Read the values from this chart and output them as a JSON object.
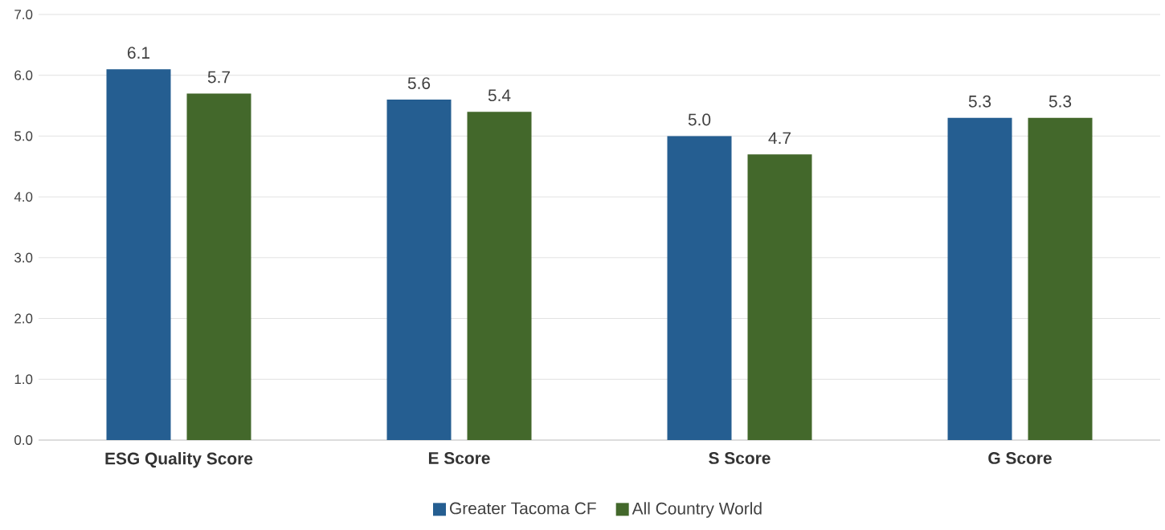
{
  "chart_data": {
    "type": "bar",
    "categories": [
      "ESG Quality Score",
      "E Score",
      "S Score",
      "G Score"
    ],
    "series": [
      {
        "name": "Greater Tacoma CF",
        "color": "#255e91",
        "values": [
          6.1,
          5.6,
          5.0,
          5.3
        ],
        "value_labels": [
          "6.1",
          "5.6",
          "5.0",
          "5.3"
        ]
      },
      {
        "name": "All Country World",
        "color": "#43682b",
        "values": [
          5.7,
          5.4,
          4.7,
          5.3
        ],
        "value_labels": [
          "5.7",
          "5.4",
          "4.7",
          "5.3"
        ]
      }
    ],
    "ylim": [
      0,
      7
    ],
    "yticks": [
      {
        "value": 0,
        "label": "0.0"
      },
      {
        "value": 1,
        "label": "1.0"
      },
      {
        "value": 2,
        "label": "2.0"
      },
      {
        "value": 3,
        "label": "3.0"
      },
      {
        "value": 4,
        "label": "4.0"
      },
      {
        "value": 5,
        "label": "5.0"
      },
      {
        "value": 6,
        "label": "6.0"
      },
      {
        "value": 7,
        "label": "7.0"
      }
    ],
    "grid": "y",
    "legend": "bottom"
  }
}
